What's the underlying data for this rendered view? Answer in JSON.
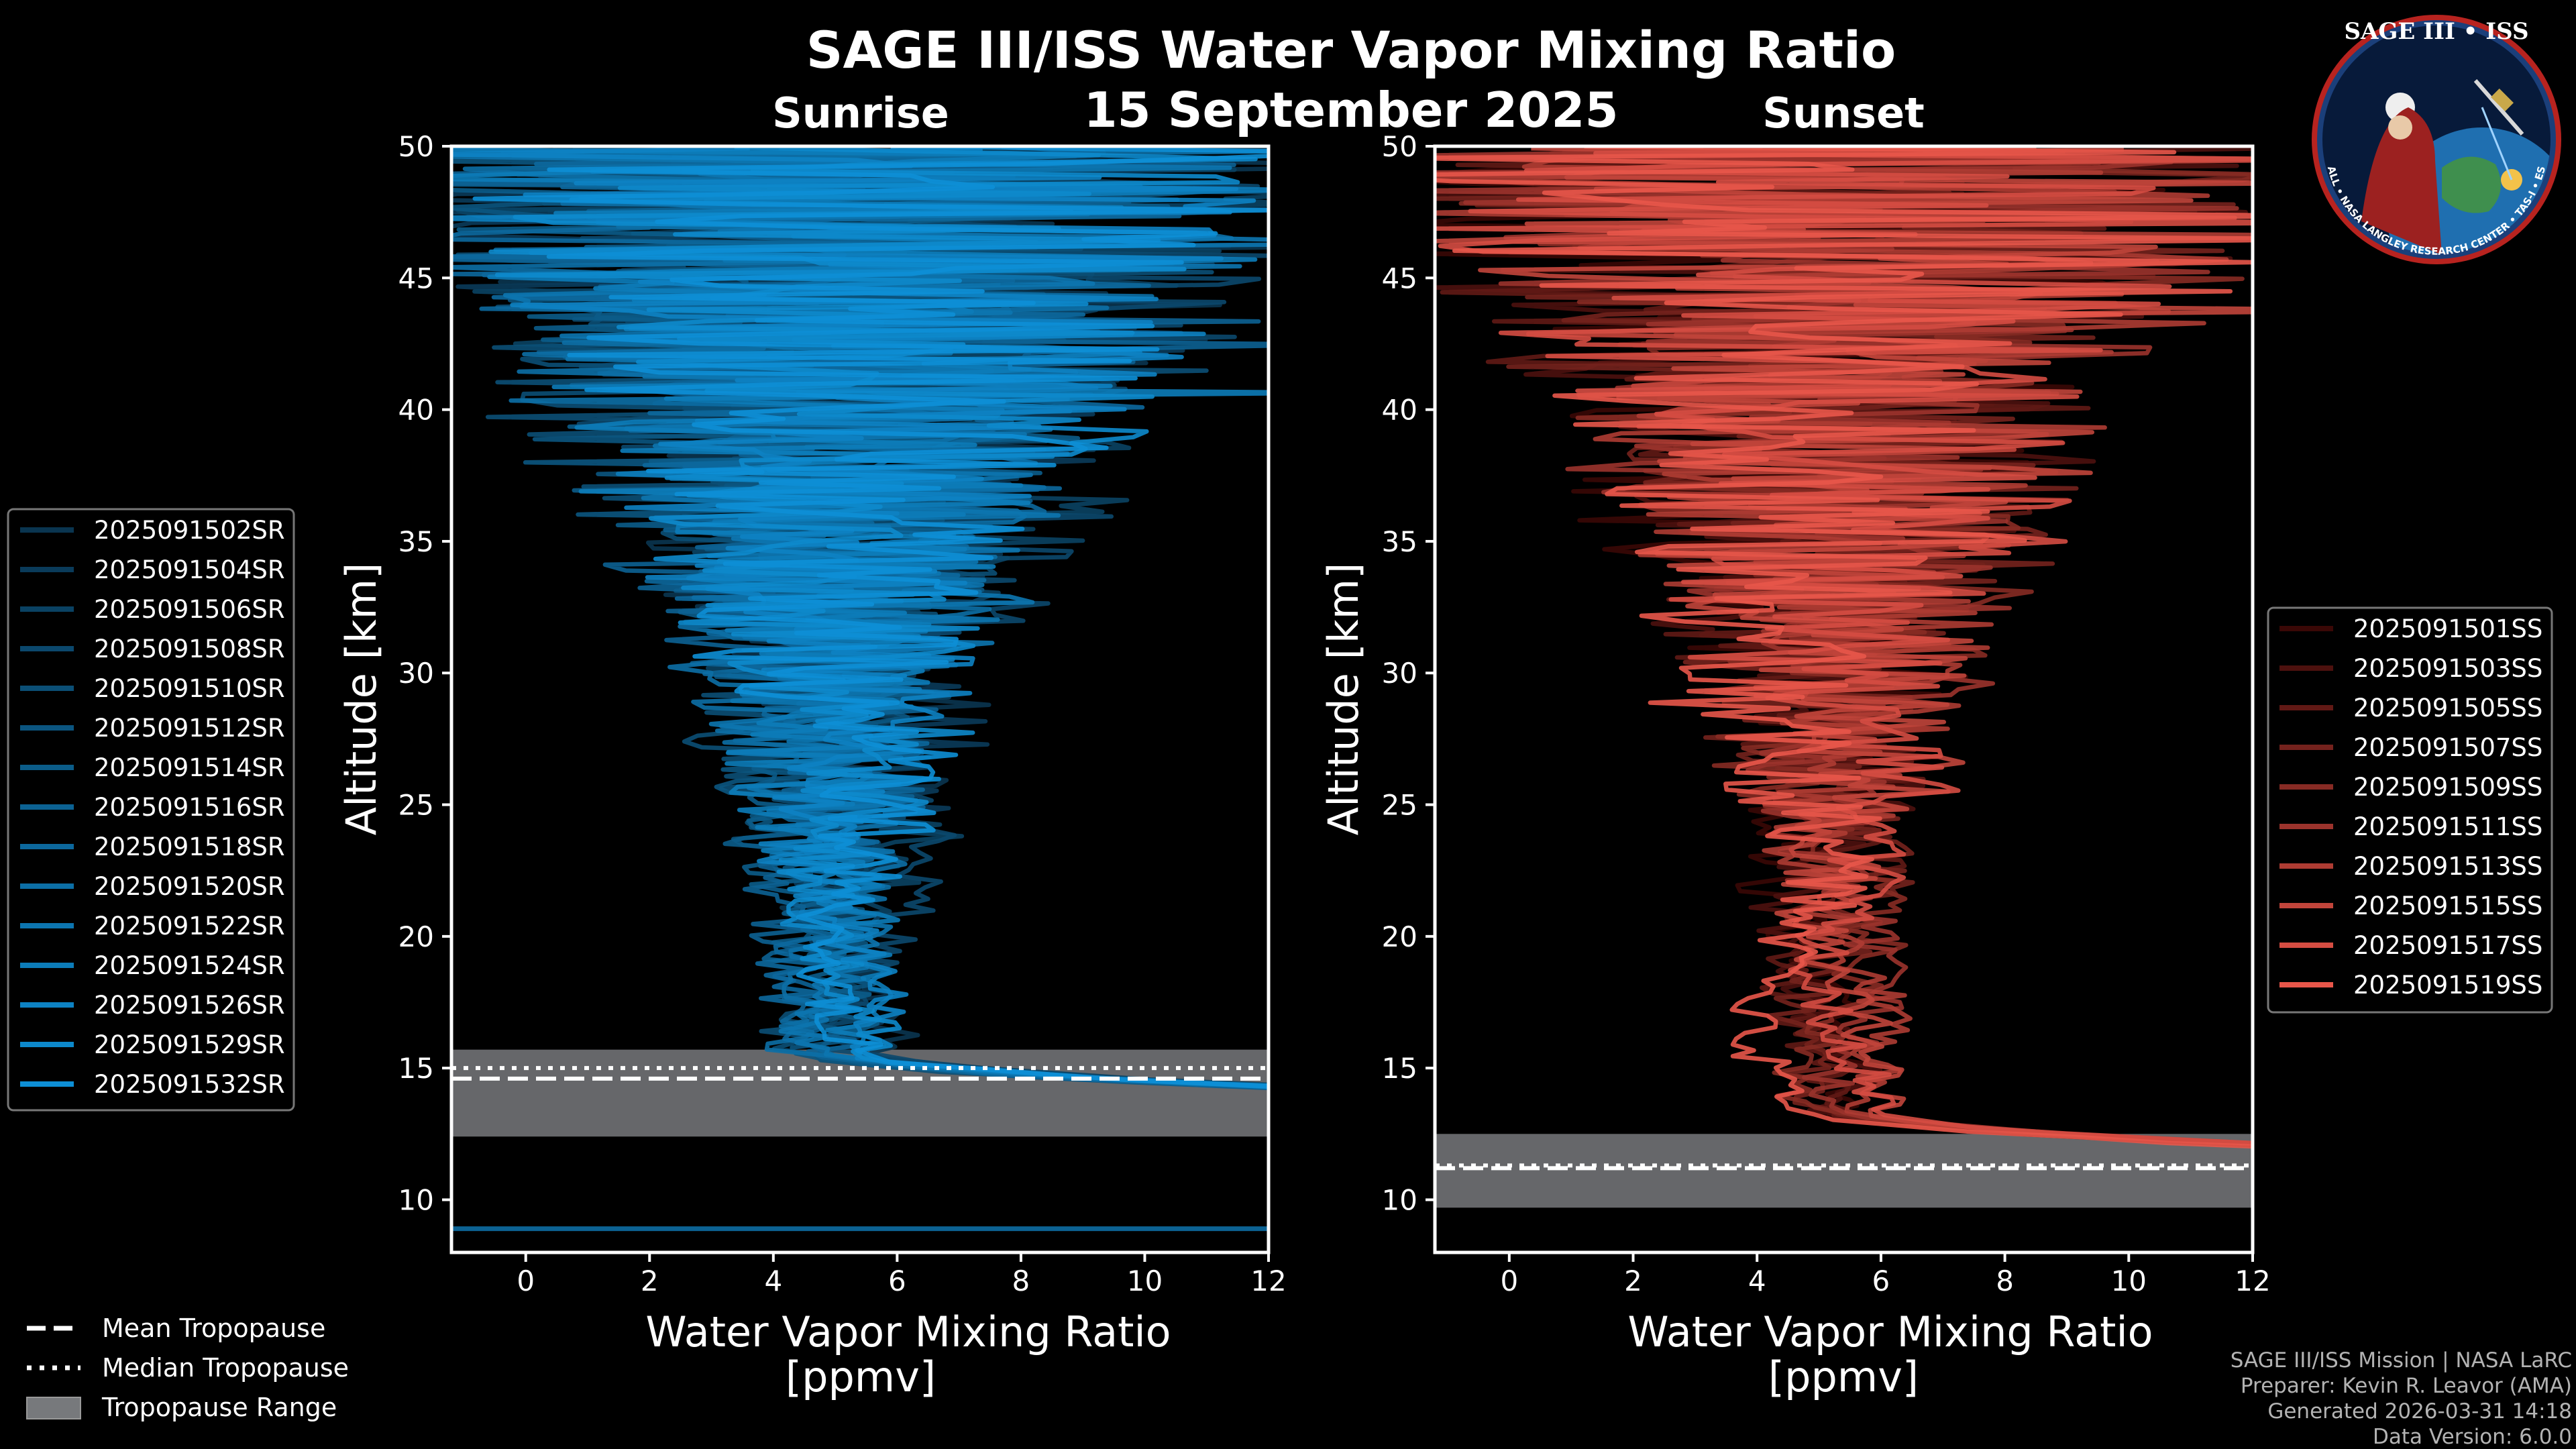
{
  "title": "SAGE III/ISS Water Vapor Mixing Ratio",
  "date": "15 September 2025",
  "logo": {
    "top_text": "SAGE III • ISS",
    "ring_text": "BALL • NASA LANGLEY RESEARCH CENTER • TAS-I • ESA"
  },
  "chart_data": [
    {
      "type": "line",
      "panel": "sunrise",
      "title": "Sunrise",
      "xlabel": "Water Vapor Mixing Ratio",
      "xlabel_unit": "[ppmv]",
      "ylabel": "Altitude [km]",
      "xlim": [
        -1.2,
        12
      ],
      "ylim": [
        8,
        50
      ],
      "xticks": [
        0,
        2,
        4,
        6,
        8,
        10,
        12
      ],
      "yticks": [
        10,
        15,
        20,
        25,
        30,
        35,
        40,
        45,
        50
      ],
      "color_dark": "#0a3550",
      "color_light": "#0d8fd6",
      "series_names": [
        "2025091502SR",
        "2025091504SR",
        "2025091506SR",
        "2025091508SR",
        "2025091510SR",
        "2025091512SR",
        "2025091514SR",
        "2025091516SR",
        "2025091518SR",
        "2025091520SR",
        "2025091522SR",
        "2025091524SR",
        "2025091526SR",
        "2025091529SR",
        "2025091532SR"
      ],
      "tropopause": {
        "mean": 14.6,
        "median": 15.0,
        "range": [
          12.4,
          15.7
        ]
      },
      "legend_position": "left",
      "tropo_base": 14.5,
      "profile_center": 5.0
    },
    {
      "type": "line",
      "panel": "sunset",
      "title": "Sunset",
      "xlabel": "Water Vapor Mixing Ratio",
      "xlabel_unit": "[ppmv]",
      "ylabel": "Altitude [km]",
      "xlim": [
        -1.2,
        12
      ],
      "ylim": [
        8,
        50
      ],
      "xticks": [
        0,
        2,
        4,
        6,
        8,
        10,
        12
      ],
      "yticks": [
        10,
        15,
        20,
        25,
        30,
        35,
        40,
        45,
        50
      ],
      "color_dark": "#3a0806",
      "color_light": "#e8564a",
      "series_names": [
        "2025091501SS",
        "2025091503SS",
        "2025091505SS",
        "2025091507SS",
        "2025091509SS",
        "2025091511SS",
        "2025091513SS",
        "2025091515SS",
        "2025091517SS",
        "2025091519SS"
      ],
      "tropopause": {
        "mean": 11.2,
        "median": 11.3,
        "range": [
          9.7,
          12.5
        ]
      },
      "legend_position": "right",
      "tropo_base": 12.3,
      "profile_center": 5.1
    }
  ],
  "tropo_legend": {
    "mean": "Mean Tropopause",
    "median": "Median Tropopause",
    "range": "Tropopause Range"
  },
  "footer": {
    "line1": "SAGE III/ISS Mission | NASA LaRC",
    "line2": "Preparer: Kevin R. Leavor (AMA)",
    "line3": "Generated 2026-03-31 14:18",
    "line4": "Data Version: 6.0.0"
  }
}
